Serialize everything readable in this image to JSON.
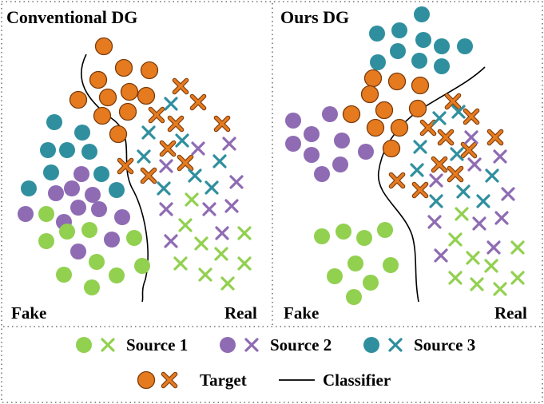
{
  "colors": {
    "source1": "#92d050",
    "source2": "#8e6bb3",
    "source3": "#2f8f9e",
    "target": "#e57a1f",
    "target_stroke": "#7a3a0a",
    "classifier": "#000000"
  },
  "panels": [
    {
      "title": "Conventional DG",
      "left_label": "Fake",
      "right_label": "Real"
    },
    {
      "title": "Ours DG",
      "left_label": "Fake",
      "right_label": "Real"
    }
  ],
  "legend": {
    "source1": "Source 1",
    "source2": "Source 2",
    "source3": "Source 3",
    "target": "Target",
    "classifier": "Classifier"
  }
}
